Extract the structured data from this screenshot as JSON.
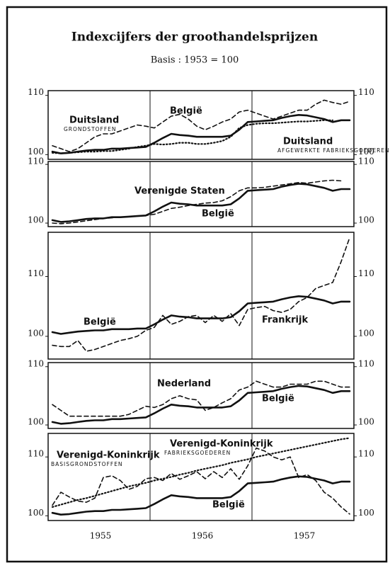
{
  "header": {
    "title": "Indexcijfers der groothandelsprijzen",
    "subtitle": "Basis : 1953 = 100"
  },
  "chart_data": [
    {
      "type": "line",
      "ylim": [
        99.2,
        110.8
      ],
      "yticks": [
        100,
        110
      ],
      "series": [
        {
          "name": "België",
          "style": "solid",
          "color": "#111111",
          "values": [
            100.5,
            100.2,
            100.3,
            100.5,
            100.7,
            100.8,
            100.8,
            101,
            101,
            101.1,
            101.2,
            101.3,
            102,
            102.8,
            103.5,
            103.3,
            103.2,
            103,
            103,
            103,
            103,
            103.2,
            104.2,
            105.5,
            105.6,
            105.7,
            105.8,
            106.2,
            106.5,
            106.7,
            106.6,
            106.3,
            106,
            105.5,
            105.8,
            105.8
          ]
        },
        {
          "name": "Duitsland",
          "subname": "GRONDSTOFFEN",
          "style": "dashed",
          "color": "#111111",
          "values": [
            101.5,
            101,
            100.5,
            101,
            102,
            103,
            103.5,
            103.5,
            104,
            104.5,
            105,
            104.8,
            104.5,
            105.5,
            106.5,
            106.8,
            106,
            104.8,
            104.2,
            104.8,
            105.5,
            106,
            107.2,
            107.5,
            107,
            106.5,
            106,
            106.5,
            107,
            107.5,
            107.5,
            108.5,
            109.2,
            108.8,
            108.5,
            109
          ]
        },
        {
          "name": "Duitsland",
          "subname": "AFGEWERKTE FABRIEKSGOEDEREN",
          "style": "dotted",
          "color": "#111111",
          "values": [
            100.3,
            100.2,
            100.3,
            100.4,
            100.5,
            100.5,
            100.6,
            100.6,
            100.8,
            101,
            101.3,
            101.5,
            101.8,
            101.7,
            101.8,
            102,
            102,
            101.8,
            101.8,
            102,
            102.3,
            103,
            104.5,
            105,
            105.2,
            105.3,
            105.3,
            105.4,
            105.5,
            105.6,
            105.6,
            105.7,
            105.8,
            105.8,
            null,
            null
          ]
        }
      ]
    },
    {
      "type": "line",
      "ylim": [
        99.4,
        110.5
      ],
      "yticks": [
        100,
        110
      ],
      "series": [
        {
          "name": "België",
          "style": "solid",
          "color": "#111111",
          "values": [
            100.5,
            100.2,
            100.3,
            100.5,
            100.7,
            100.8,
            100.8,
            101,
            101,
            101.1,
            101.2,
            101.3,
            102,
            102.8,
            103.5,
            103.3,
            103.2,
            103,
            103,
            103,
            103,
            103.2,
            104.2,
            105.5,
            105.6,
            105.7,
            105.8,
            106.2,
            106.5,
            106.7,
            106.6,
            106.3,
            106,
            105.5,
            105.8,
            105.8
          ]
        },
        {
          "name": "Verenigde Staten",
          "style": "dashed",
          "color": "#111111",
          "values": [
            100,
            99.9,
            100,
            100.2,
            100.4,
            100.6,
            100.8,
            100.9,
            101,
            101.1,
            101.2,
            101.3,
            101.5,
            102,
            102.5,
            102.7,
            103,
            103.2,
            103.4,
            103.5,
            103.8,
            104.5,
            105.5,
            106,
            106,
            106.1,
            106.3,
            106.5,
            106.7,
            106.9,
            106.8,
            107,
            107.2,
            107.3,
            107.2,
            null
          ]
        }
      ]
    },
    {
      "type": "line",
      "ylim": [
        96.2,
        117.4
      ],
      "yticks": [
        100,
        110
      ],
      "series": [
        {
          "name": "België",
          "style": "solid",
          "color": "#111111",
          "values": [
            100.7,
            100.4,
            100.6,
            100.8,
            100.9,
            101,
            101,
            101.2,
            101.2,
            101.2,
            101.3,
            101.3,
            102,
            102.8,
            103.5,
            103.3,
            103.2,
            103,
            103,
            103,
            103,
            103.2,
            104.2,
            105.5,
            105.6,
            105.7,
            105.8,
            106.2,
            106.5,
            106.7,
            106.6,
            106.3,
            106,
            105.5,
            105.8,
            105.8
          ]
        },
        {
          "name": "Frankrijk",
          "style": "dashed",
          "color": "#111111",
          "values": [
            98.5,
            98.3,
            98.3,
            99.3,
            97.5,
            97.8,
            98.3,
            98.8,
            99.3,
            99.6,
            100,
            101,
            101.5,
            103.5,
            102,
            102.5,
            103.3,
            103.5,
            102.3,
            103.5,
            102.5,
            103.8,
            101.8,
            104.5,
            104.8,
            105,
            104.3,
            104,
            104.5,
            105.8,
            106.5,
            108,
            108.5,
            109,
            112.5,
            116.5
          ]
        }
      ]
    },
    {
      "type": "line",
      "ylim": [
        99.4,
        110.7
      ],
      "yticks": [
        100,
        110
      ],
      "series": [
        {
          "name": "België",
          "style": "solid",
          "color": "#111111",
          "values": [
            100.5,
            100.2,
            100.3,
            100.5,
            100.7,
            100.8,
            100.8,
            101,
            101,
            101.1,
            101.2,
            101.3,
            102,
            102.8,
            103.5,
            103.3,
            103.2,
            103,
            103,
            103,
            103,
            103.2,
            104.2,
            105.5,
            105.6,
            105.7,
            105.8,
            106.2,
            106.5,
            106.7,
            106.6,
            106.3,
            106,
            105.5,
            105.8,
            105.8
          ]
        },
        {
          "name": "Nederland",
          "style": "dashed",
          "color": "#111111",
          "values": [
            103.5,
            102.5,
            101.5,
            101.5,
            101.5,
            101.5,
            101.5,
            101.5,
            101.5,
            101.8,
            102.5,
            103.2,
            103,
            103.5,
            104.5,
            105,
            104.5,
            104.3,
            102.5,
            103,
            103.8,
            104.5,
            106,
            106.5,
            107.5,
            107,
            106.5,
            106.5,
            107,
            107,
            107,
            107.5,
            107.5,
            107,
            106.5,
            106.5
          ]
        }
      ]
    },
    {
      "type": "line",
      "ylim": [
        99.2,
        114.0
      ],
      "yticks": [
        100,
        110
      ],
      "categories": [
        null,
        null,
        null,
        null,
        null,
        null,
        "1955",
        null,
        null,
        null,
        null,
        null,
        null,
        null,
        null,
        null,
        null,
        null,
        "1956",
        null,
        null,
        null,
        null,
        null,
        null,
        null,
        null,
        null,
        null,
        null,
        "1957",
        null,
        null,
        null,
        null,
        null
      ],
      "series": [
        {
          "name": "België",
          "style": "solid",
          "color": "#111111",
          "values": [
            100.5,
            100.2,
            100.3,
            100.5,
            100.7,
            100.8,
            100.8,
            101,
            101,
            101.1,
            101.2,
            101.3,
            102,
            102.8,
            103.5,
            103.3,
            103.2,
            103,
            103,
            103,
            103,
            103.2,
            104.2,
            105.5,
            105.6,
            105.7,
            105.8,
            106.2,
            106.5,
            106.7,
            106.6,
            106.3,
            106,
            105.5,
            105.8,
            105.8
          ]
        },
        {
          "name": "Verenigd-Koninkrijk",
          "subname": "BASISGRONDSTOFFEN",
          "style": "dashed",
          "color": "#111111",
          "values": [
            101.8,
            104,
            103.2,
            102.5,
            102.3,
            103,
            106.5,
            106.8,
            106,
            104.5,
            105,
            106.3,
            106.5,
            106,
            107.2,
            106.2,
            106.8,
            107.5,
            106.3,
            107.5,
            106.5,
            108,
            106.2,
            108.5,
            111.5,
            111,
            110,
            109.5,
            110,
            106.5,
            107,
            106,
            104,
            103,
            101.5,
            100.3
          ]
        },
        {
          "name": "Verenigd-Koninkrijk",
          "subname": "FABRIEKSGOEDEREN",
          "style": "dotted",
          "color": "#111111",
          "values": [
            101.5,
            101.9,
            102.3,
            102.7,
            103,
            103.4,
            103.8,
            104.2,
            104.6,
            105,
            105.3,
            105.6,
            106,
            106.3,
            106.6,
            107,
            107.3,
            107.7,
            108,
            108.3,
            108.6,
            109,
            109.3,
            109.6,
            110,
            110.3,
            110.6,
            110.9,
            111.2,
            111.5,
            111.8,
            112.1,
            112.4,
            112.7,
            113,
            113.2
          ]
        }
      ]
    }
  ]
}
